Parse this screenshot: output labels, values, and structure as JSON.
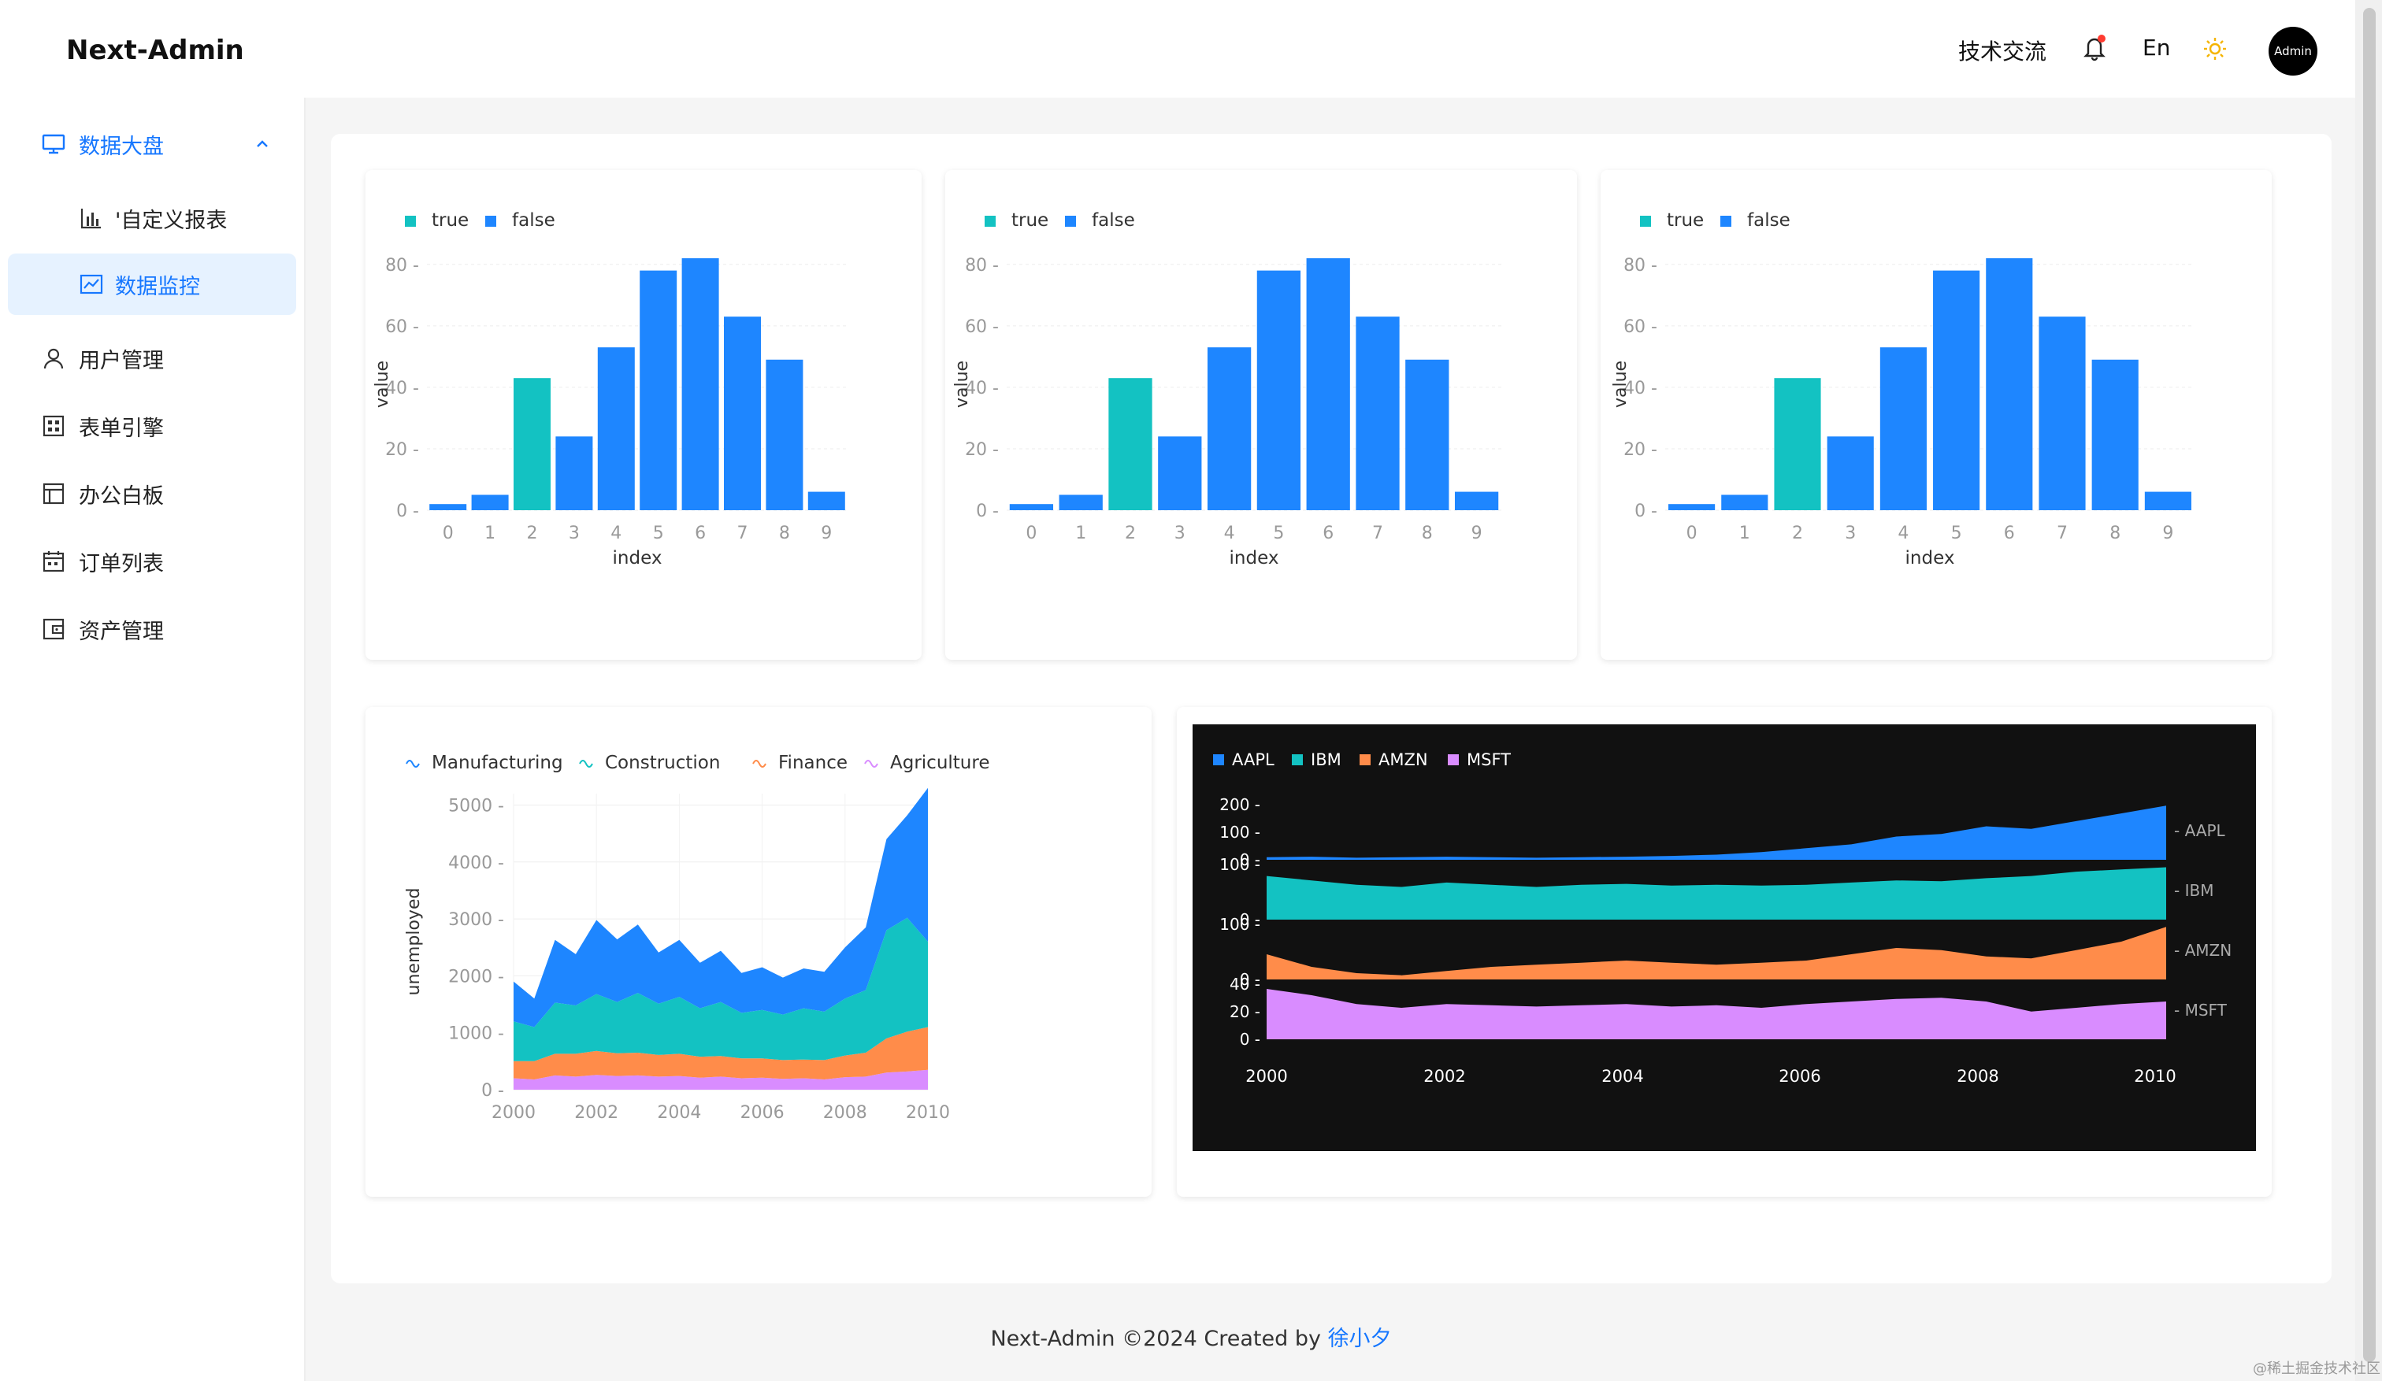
{
  "app": {
    "title": "Next-Admin"
  },
  "header": {
    "tech": "技术交流",
    "lang": "En",
    "avatar": "Admin",
    "icons": [
      "bell-icon",
      "sun-icon"
    ]
  },
  "sidebar": {
    "items": [
      {
        "label": "数据大盘",
        "icon": "monitor-icon",
        "expanded": true
      },
      {
        "label": "'自定义报表",
        "icon": "bar-chart-icon",
        "sub": true
      },
      {
        "label": "数据监控",
        "icon": "line-chart-icon",
        "sub": true,
        "selected": true
      },
      {
        "label": "用户管理",
        "icon": "user-icon"
      },
      {
        "label": "表单引擎",
        "icon": "form-icon"
      },
      {
        "label": "办公白板",
        "icon": "board-icon"
      },
      {
        "label": "订单列表",
        "icon": "calendar-icon"
      },
      {
        "label": "资产管理",
        "icon": "wallet-icon"
      }
    ]
  },
  "chart_data": [
    {
      "type": "bar",
      "legend": [
        "true",
        "false"
      ],
      "colors": {
        "true": "#13c2c2",
        "false": "#1e86ff"
      },
      "categories": [
        "0",
        "1",
        "2",
        "3",
        "4",
        "5",
        "6",
        "7",
        "8",
        "9"
      ],
      "values": [
        2,
        5,
        43,
        24,
        53,
        78,
        82,
        63,
        49,
        6
      ],
      "flag": [
        false,
        false,
        true,
        false,
        false,
        false,
        false,
        false,
        false,
        false
      ],
      "xlabel": "index",
      "ylabel": "value",
      "yticks": [
        0,
        20,
        40,
        60,
        80
      ],
      "ylim": [
        0,
        82
      ]
    },
    {
      "type": "bar",
      "legend": [
        "true",
        "false"
      ],
      "colors": {
        "true": "#13c2c2",
        "false": "#1e86ff"
      },
      "categories": [
        "0",
        "1",
        "2",
        "3",
        "4",
        "5",
        "6",
        "7",
        "8",
        "9"
      ],
      "values": [
        2,
        5,
        43,
        24,
        53,
        78,
        82,
        63,
        49,
        6
      ],
      "flag": [
        false,
        false,
        true,
        false,
        false,
        false,
        false,
        false,
        false,
        false
      ],
      "xlabel": "index",
      "ylabel": "value",
      "yticks": [
        0,
        20,
        40,
        60,
        80
      ],
      "ylim": [
        0,
        82
      ]
    },
    {
      "type": "bar",
      "legend": [
        "true",
        "false"
      ],
      "colors": {
        "true": "#13c2c2",
        "false": "#1e86ff"
      },
      "categories": [
        "0",
        "1",
        "2",
        "3",
        "4",
        "5",
        "6",
        "7",
        "8",
        "9"
      ],
      "values": [
        2,
        5,
        43,
        24,
        53,
        78,
        82,
        63,
        49,
        6
      ],
      "flag": [
        false,
        false,
        true,
        false,
        false,
        false,
        false,
        false,
        false,
        false
      ],
      "xlabel": "index",
      "ylabel": "value",
      "yticks": [
        0,
        20,
        40,
        60,
        80
      ],
      "ylim": [
        0,
        82
      ]
    },
    {
      "type": "area",
      "stacked": true,
      "ylabel": "unemployed",
      "yticks": [
        0,
        1000,
        2000,
        3000,
        4000,
        5000
      ],
      "xticks": [
        "2000",
        "2002",
        "2004",
        "2006",
        "2008",
        "2010"
      ],
      "ylim": [
        0,
        5200
      ],
      "x": [
        2000,
        2000.5,
        2001,
        2001.5,
        2002,
        2002.5,
        2003,
        2003.5,
        2004,
        2004.5,
        2005,
        2005.5,
        2006,
        2006.5,
        2007,
        2007.5,
        2008,
        2008.5,
        2009,
        2009.5,
        2010
      ],
      "series": [
        {
          "name": "Agriculture",
          "color": "#d98cff",
          "values": [
            200,
            180,
            250,
            230,
            260,
            240,
            250,
            230,
            240,
            210,
            230,
            200,
            210,
            190,
            200,
            180,
            220,
            230,
            300,
            320,
            350
          ]
        },
        {
          "name": "Finance",
          "color": "#ff8c4a",
          "values": [
            300,
            320,
            380,
            400,
            420,
            400,
            400,
            380,
            390,
            370,
            360,
            350,
            340,
            330,
            330,
            340,
            380,
            420,
            600,
            700,
            750
          ]
        },
        {
          "name": "Construction",
          "color": "#13c2c2",
          "values": [
            700,
            600,
            900,
            850,
            1000,
            900,
            1050,
            900,
            1000,
            850,
            950,
            800,
            850,
            800,
            900,
            850,
            1000,
            1100,
            1900,
            2000,
            1500
          ]
        },
        {
          "name": "Manufacturing",
          "color": "#1e86ff",
          "values": [
            700,
            500,
            1100,
            900,
            1300,
            1100,
            1200,
            900,
            1000,
            800,
            900,
            700,
            750,
            650,
            700,
            700,
            900,
            1100,
            1600,
            1800,
            2700
          ]
        }
      ]
    },
    {
      "type": "area",
      "background": "#111111",
      "xticks": [
        "2000",
        "2002",
        "2004",
        "2006",
        "2008",
        "2010"
      ],
      "series": [
        {
          "name": "AAPL",
          "color": "#1e86ff",
          "ticks": [
            "200",
            "100",
            "0"
          ],
          "ymax": 220,
          "values": [
            10,
            12,
            8,
            10,
            12,
            10,
            8,
            10,
            12,
            15,
            20,
            30,
            45,
            60,
            90,
            100,
            130,
            120,
            150,
            180,
            210
          ]
        },
        {
          "name": "IBM",
          "color": "#13c2c2",
          "ticks": [
            "100",
            "0"
          ],
          "ymax": 130,
          "values": [
            100,
            90,
            80,
            75,
            85,
            80,
            75,
            80,
            82,
            78,
            80,
            78,
            80,
            85,
            90,
            88,
            95,
            100,
            110,
            115,
            120
          ]
        },
        {
          "name": "AMZN",
          "color": "#ff8c4a",
          "ticks": [
            "100",
            "0"
          ],
          "ymax": 135,
          "values": [
            60,
            30,
            15,
            10,
            20,
            30,
            35,
            40,
            45,
            40,
            35,
            40,
            45,
            60,
            75,
            70,
            55,
            50,
            70,
            90,
            125
          ]
        },
        {
          "name": "MSFT",
          "color": "#d98cff",
          "ticks": [
            "40",
            "20",
            "0"
          ],
          "ymax": 45,
          "values": [
            40,
            35,
            28,
            25,
            28,
            27,
            26,
            27,
            28,
            26,
            27,
            25,
            28,
            30,
            32,
            33,
            30,
            22,
            25,
            28,
            30
          ]
        }
      ]
    }
  ],
  "footer": {
    "text": "Next-Admin ©2024 Created by",
    "link": "徐小夕"
  },
  "watermark": "@稀土掘金技术社区"
}
